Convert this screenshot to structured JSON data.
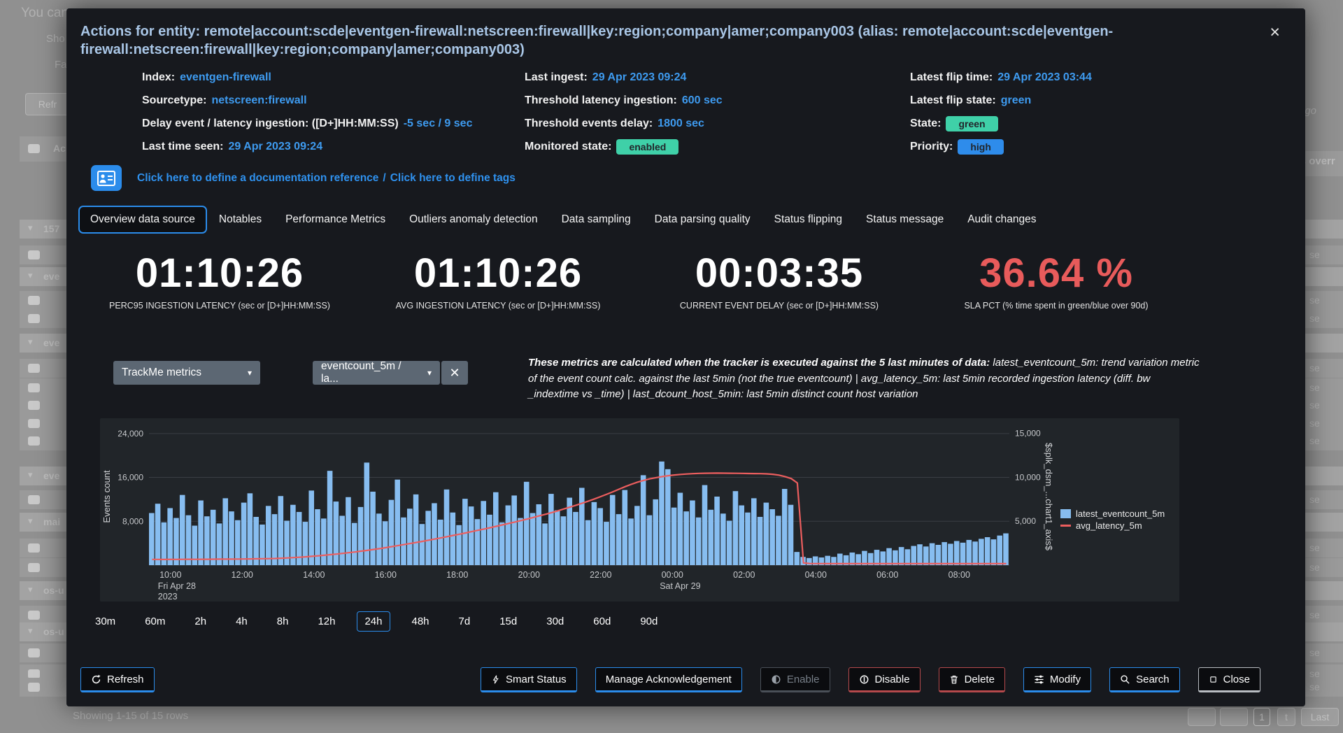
{
  "backdrop": {
    "top_left_text": "You can",
    "fragments": {
      "show": "Sho",
      "fa": "Fa",
      "refresh": "Refr",
      "col_header_left": "Ac",
      "col_header_right": "ass overr",
      "ago": "ago"
    },
    "rows": [
      {
        "type": "group",
        "label": "157"
      },
      {
        "type": "item"
      },
      {
        "type": "group",
        "label": "eve"
      },
      {
        "type": "item"
      },
      {
        "type": "item"
      },
      {
        "type": "group",
        "label": "eve"
      },
      {
        "type": "item"
      },
      {
        "type": "item"
      },
      {
        "type": "item"
      },
      {
        "type": "item"
      },
      {
        "type": "item"
      },
      {
        "type": "group",
        "label": "eve"
      },
      {
        "type": "item"
      },
      {
        "type": "group",
        "label": "mai"
      },
      {
        "type": "item"
      },
      {
        "type": "item"
      },
      {
        "type": "group",
        "label": "os-u"
      },
      {
        "type": "item"
      },
      {
        "type": "group",
        "label": "os-u"
      },
      {
        "type": "item"
      },
      {
        "type": "item"
      },
      {
        "type": "item"
      }
    ],
    "right_cell_text": "se",
    "showing_text": "Showing 1-15 of 15 rows",
    "pagination": {
      "page": "1",
      "cut": "t",
      "last": "Last"
    }
  },
  "modal": {
    "title": "Actions for entity: remote|account:scde|eventgen-firewall:netscreen:firewall|key:region;company|amer;company003 (alias: remote|account:scde|eventgen-firewall:netscreen:firewall|key:region;company|amer;company003)",
    "icons": {
      "close": "×",
      "caret_down": "▾",
      "clear": "✕"
    },
    "info": {
      "columns": [
        [
          {
            "label": "Index:",
            "value": "eventgen-firewall"
          },
          {
            "label": "Sourcetype:",
            "value": "netscreen:firewall"
          },
          {
            "label": "Delay event / latency ingestion: ([D+]HH:MM:SS)",
            "value": "-5 sec / 9 sec"
          },
          {
            "label": "Last time seen:",
            "value": "29 Apr 2023 09:24"
          }
        ],
        [
          {
            "label": "Last ingest:",
            "value": "29 Apr 2023 09:24"
          },
          {
            "label": "Threshold latency ingestion:",
            "value": "600 sec"
          },
          {
            "label": "Threshold events delay:",
            "value": "1800 sec"
          },
          {
            "label": "Monitored state:",
            "badge": "enabled",
            "badge_color": "teal"
          }
        ],
        [
          {
            "label": "Latest flip time:",
            "value": "29 Apr 2023 03:44"
          },
          {
            "label": "Latest flip state:",
            "value": "green"
          },
          {
            "label": "State:",
            "badge": "green",
            "badge_color": "teal"
          },
          {
            "label": "Priority:",
            "badge": "high",
            "badge_color": "blue"
          }
        ]
      ]
    },
    "doc_links": {
      "link1": "Click here to define a documentation reference",
      "separator": "/",
      "link2": "Click here to define tags"
    },
    "tabs": [
      "Overview data source",
      "Notables",
      "Performance Metrics",
      "Outliers anomaly detection",
      "Data sampling",
      "Data parsing quality",
      "Status flipping",
      "Status message",
      "Audit changes"
    ],
    "active_tab_index": 0,
    "kpis": [
      {
        "value": "01:10:26",
        "label": "PERC95 INGESTION LATENCY (sec or [D+]HH:MM:SS)"
      },
      {
        "value": "01:10:26",
        "label": "AVG INGESTION LATENCY (sec or [D+]HH:MM:SS)"
      },
      {
        "value": "00:03:35",
        "label": "CURRENT EVENT DELAY (sec or [D+]HH:MM:SS)"
      },
      {
        "value": "36.64 %",
        "label": "SLA PCT (% time spent in green/blue over 90d)",
        "color": "#E85B5B"
      }
    ],
    "controls": {
      "dropdown1_label": "TrackMe metrics",
      "dropdown2_label": "eventcount_5m / la..."
    },
    "note": {
      "lead": "These metrics are calculated when the tracker is executed against the 5 last minutes of data:",
      "rest": " latest_eventcount_5m: trend variation metric of the event count calc. against the last 5min (not the true eventcount) | avg_latency_5m: last 5min recorded ingestion latency (diff. bw _indextime vs _time) | last_dcount_host_5min: last 5min distinct count host variation"
    },
    "time_ranges": [
      "30m",
      "60m",
      "2h",
      "4h",
      "8h",
      "12h",
      "24h",
      "48h",
      "7d",
      "15d",
      "30d",
      "60d",
      "90d"
    ],
    "active_range": "24h",
    "footer": {
      "refresh_label": "Refresh",
      "actions": [
        {
          "label": "Smart Status",
          "icon": "lightning-icon",
          "style": "blue"
        },
        {
          "label": "Manage Acknowledgement",
          "icon": "",
          "style": "blue"
        },
        {
          "label": "Enable",
          "icon": "toggle-half-icon",
          "style": "disabled"
        },
        {
          "label": "Disable",
          "icon": "power-icon",
          "style": "red"
        },
        {
          "label": "Delete",
          "icon": "trash-icon",
          "style": "red"
        },
        {
          "label": "Modify",
          "icon": "sliders-icon",
          "style": "blue"
        },
        {
          "label": "Search",
          "icon": "search-icon",
          "style": "blue"
        },
        {
          "label": "Close",
          "icon": "square-icon",
          "style": "neutral"
        }
      ]
    }
  },
  "chart_data": {
    "type": "bar",
    "subtype": "timechart bar + line overlay",
    "x_start": "Fri Apr 28 2023 09:24",
    "x_end": "Sat Apr 29 2023 09:24",
    "x_ticks": [
      {
        "label": "10:00",
        "sub": "Fri Apr 28",
        "sub2": "2023",
        "pos": 0.025
      },
      {
        "label": "12:00",
        "pos": 0.1083
      },
      {
        "label": "14:00",
        "pos": 0.1917
      },
      {
        "label": "16:00",
        "pos": 0.275
      },
      {
        "label": "18:00",
        "pos": 0.3583
      },
      {
        "label": "20:00",
        "pos": 0.4417
      },
      {
        "label": "22:00",
        "pos": 0.525
      },
      {
        "label": "00:00",
        "sub": "Sat Apr 29",
        "pos": 0.6083
      },
      {
        "label": "02:00",
        "pos": 0.6917
      },
      {
        "label": "04:00",
        "pos": 0.775
      },
      {
        "label": "06:00",
        "pos": 0.8583
      },
      {
        "label": "08:00",
        "pos": 0.9417
      }
    ],
    "left_axis": {
      "label": "Events count",
      "ticks": [
        8000,
        16000,
        24000
      ],
      "max": 25000
    },
    "right_axis": {
      "label": "$splk_dsm_...chart1_axis$",
      "ticks": [
        5000,
        10000,
        15000
      ],
      "max": 15600
    },
    "legend_position": "right",
    "grid": true,
    "series": [
      {
        "name": "latest_eventcount_5m",
        "type": "bar",
        "axis": "left",
        "color": "#87BDF0",
        "values": [
          9500,
          11200,
          7800,
          10400,
          8600,
          12800,
          9100,
          7200,
          11800,
          8900,
          10100,
          7600,
          12200,
          9800,
          8200,
          11400,
          13100,
          8800,
          7400,
          10800,
          9300,
          12600,
          8100,
          11000,
          9700,
          7900,
          13600,
          10200,
          8500,
          17200,
          11600,
          9000,
          12400,
          7700,
          10600,
          18700,
          13400,
          9400,
          8000,
          11900,
          15600,
          8700,
          10300,
          12900,
          7500,
          9900,
          11300,
          8300,
          13800,
          9600,
          7300,
          12100,
          10700,
          8400,
          11700,
          9200,
          13300,
          7800,
          10900,
          12700,
          8600,
          15200,
          9500,
          11100,
          7600,
          13000,
          10000,
          8900,
          12300,
          9700,
          14100,
          8200,
          11500,
          10400,
          7900,
          12800,
          9300,
          13700,
          8500,
          10800,
          16400,
          9100,
          12000,
          18900,
          17500,
          10500,
          13200,
          9800,
          11800,
          8700,
          14600,
          10100,
          12500,
          9400,
          8100,
          13500,
          10900,
          9600,
          12200,
          8800,
          11400,
          10200,
          9000,
          13900,
          11000,
          2400,
          1500,
          1300,
          1600,
          1400,
          1700,
          1500,
          2100,
          1800,
          2300,
          2000,
          2600,
          2200,
          2800,
          2500,
          3100,
          2700,
          3300,
          2900,
          3500,
          3800,
          3400,
          4000,
          3700,
          4200,
          3900,
          4400,
          4100,
          4600,
          4300,
          4800,
          5100,
          4700,
          5400,
          5800
        ]
      },
      {
        "name": "avg_latency_5m",
        "type": "line",
        "axis": "right",
        "color": "#EC5E5E",
        "values": [
          650,
          655,
          648,
          660,
          652,
          658,
          665,
          660,
          668,
          672,
          678,
          684,
          690,
          688,
          696,
          704,
          712,
          722,
          730,
          742,
          755,
          790,
          820,
          860,
          900,
          950,
          1000,
          1060,
          1120,
          1190,
          1260,
          1340,
          1420,
          1500,
          1590,
          1680,
          1780,
          1880,
          1990,
          2100,
          2220,
          2340,
          2460,
          2580,
          2710,
          2840,
          2970,
          3100,
          3240,
          3380,
          3520,
          3660,
          3810,
          3960,
          4110,
          4260,
          4420,
          4580,
          4740,
          4900,
          5070,
          5240,
          5420,
          5600,
          5790,
          5980,
          6180,
          6390,
          6600,
          6820,
          7050,
          7290,
          7540,
          7800,
          8070,
          8350,
          8640,
          8940,
          9200,
          9450,
          9650,
          9820,
          9960,
          10080,
          10180,
          10260,
          10320,
          10370,
          10410,
          10440,
          10460,
          10470,
          10475,
          10470,
          10460,
          10450,
          10440,
          10430,
          10420,
          10410,
          10390,
          10340,
          10240,
          10080,
          9850,
          9350,
          250,
          180,
          175,
          172,
          170,
          168,
          170,
          172,
          170,
          169,
          171,
          170,
          172,
          170,
          168,
          170,
          171,
          169,
          170,
          172,
          170,
          169,
          170,
          171,
          170,
          169,
          170,
          171,
          170,
          169,
          170,
          171,
          170,
          170
        ]
      }
    ]
  },
  "colors": {
    "modal_bg": "#17191E",
    "panel_bg": "#212529",
    "accent_blue": "#2B8CEB",
    "link_blue": "#3E9BF0",
    "teal_badge": "#3FD0A8",
    "blue_badge": "#2E8CEB",
    "kpi_red": "#E85B5B",
    "bar_blue": "#87BDF0",
    "line_red": "#EC5E5E",
    "gray_button": "#5C6773"
  }
}
